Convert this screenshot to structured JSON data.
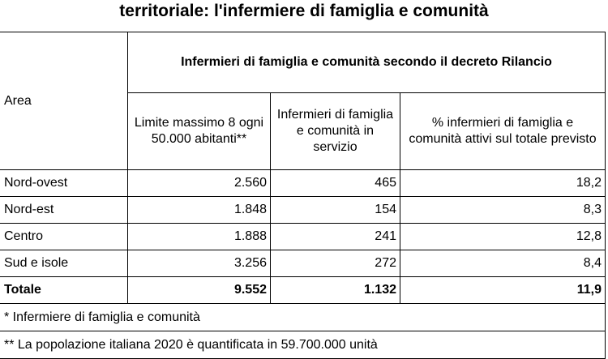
{
  "title": "territoriale: l'infermiere di famiglia e comunità",
  "table": {
    "area_header": "Area",
    "group_header": "Infermieri di famiglia e comunità secondo il decreto Rilancio",
    "columns": [
      "Limite massimo 8 ogni 50.000 abitanti**",
      "Infermieri di famiglia e comunità in servizio",
      "% infermieri di famiglia e comunità attivi sul totale previsto"
    ],
    "rows": [
      {
        "area": "Nord-ovest",
        "limit": "2.560",
        "in_service": "465",
        "pct": "18,2"
      },
      {
        "area": "Nord-est",
        "limit": "1.848",
        "in_service": "154",
        "pct": "8,3"
      },
      {
        "area": "Centro",
        "limit": "1.888",
        "in_service": "241",
        "pct": "12,8"
      },
      {
        "area": "Sud e isole",
        "limit": "3.256",
        "in_service": "272",
        "pct": "8,4"
      }
    ],
    "total": {
      "area": "Totale",
      "limit": "9.552",
      "in_service": "1.132",
      "pct": "11,9"
    }
  },
  "notes": [
    "* Infermiere di famiglia e comunità",
    "** La popolazione italiana 2020 è quantificata in 59.700.000 unità"
  ]
}
